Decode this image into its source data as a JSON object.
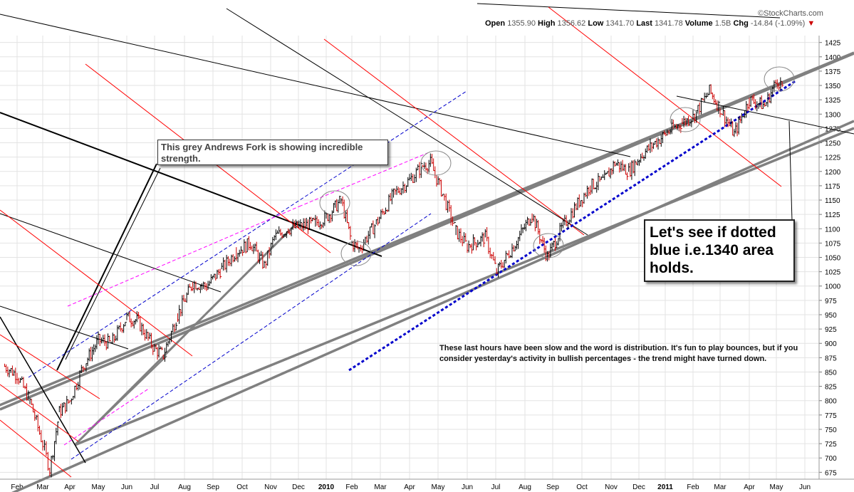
{
  "header": {
    "brand": "©StockCharts.com",
    "open_label": "Open",
    "open": "1355.90",
    "high_label": "High",
    "high": "1356.62",
    "low_label": "Low",
    "low": "1341.70",
    "last_label": "Last",
    "last": "1341.78",
    "volume_label": "Volume",
    "volume": "1.5B",
    "chg_label": "Chg",
    "chg": "-14.84 (-1.09%)",
    "chg_arrow": "▼"
  },
  "annotations": {
    "fork_callout": "This grey Andrews Fork is showing incredible strength.",
    "big_callout": "Let's see if dotted blue i.e.1340 area holds.",
    "note": "These last hours have been slow and the word is distribution. It's fun to play bounces, but if you consider yesterday's activity in bullish percentages - the trend might have turned down."
  },
  "colors": {
    "up_bar": "#000000",
    "down_bar": "#cc0000",
    "grey_fork": "#808080",
    "red_line": "#ff0000",
    "blue_line": "#0000cc",
    "magenta_line": "#ff00ff"
  },
  "chart_data": {
    "type": "line",
    "style": "ohlc",
    "yaxis_position": "right",
    "ylim": [
      663,
      1437
    ],
    "y_ticks": [
      675,
      700,
      725,
      750,
      775,
      800,
      825,
      850,
      875,
      900,
      925,
      950,
      975,
      1000,
      1025,
      1050,
      1075,
      1100,
      1125,
      1150,
      1175,
      1200,
      1225,
      1250,
      1275,
      1300,
      1325,
      1350,
      1375,
      1400,
      1425
    ],
    "x_tick_labels": [
      "Feb",
      "Mar",
      "Apr",
      "May",
      "Jun",
      "Jul",
      "Aug",
      "Sep",
      "Oct",
      "Nov",
      "Dec",
      "2010",
      "Feb",
      "Mar",
      "Apr",
      "May",
      "Jun",
      "Jul",
      "Aug",
      "Sep",
      "Oct",
      "Nov",
      "Dec",
      "2011",
      "Feb",
      "Mar",
      "Apr",
      "May",
      "Jun"
    ],
    "bold_x_ticks": [
      "2010",
      "2011"
    ],
    "grid": true,
    "series": [
      {
        "x": [
          "2009-01-15",
          "2009-02-01",
          "2009-02-15",
          "2009-03-01",
          "2009-03-09",
          "2009-03-20",
          "2009-04-01",
          "2009-04-15",
          "2009-05-01",
          "2009-05-15",
          "2009-06-01",
          "2009-06-12",
          "2009-07-01",
          "2009-07-10",
          "2009-07-25",
          "2009-08-10",
          "2009-08-25",
          "2009-09-10",
          "2009-09-25",
          "2009-10-10",
          "2009-10-25",
          "2009-11-05",
          "2009-11-20",
          "2009-12-05",
          "2009-12-20",
          "2010-01-01",
          "2010-01-19",
          "2010-02-01",
          "2010-02-08",
          "2010-02-25",
          "2010-03-15",
          "2010-04-01",
          "2010-04-15",
          "2010-04-23",
          "2010-05-06",
          "2010-05-20",
          "2010-06-01",
          "2010-06-20",
          "2010-07-02",
          "2010-07-20",
          "2010-08-09",
          "2010-08-26",
          "2010-09-10",
          "2010-09-25",
          "2010-10-10",
          "2010-10-25",
          "2010-11-05",
          "2010-11-20",
          "2010-12-05",
          "2010-12-20",
          "2011-01-05",
          "2011-01-20",
          "2011-02-01",
          "2011-02-18",
          "2011-03-01",
          "2011-03-16",
          "2011-04-01",
          "2011-04-18",
          "2011-05-02",
          "2011-05-09"
        ],
        "values": [
          860,
          845,
          800,
          725,
          680,
          780,
          800,
          860,
          905,
          900,
          945,
          940,
          890,
          880,
          950,
          1005,
          1000,
          1030,
          1060,
          1075,
          1035,
          1085,
          1100,
          1105,
          1110,
          1120,
          1150,
          1075,
          1065,
          1110,
          1160,
          1185,
          1210,
          1215,
          1160,
          1095,
          1070,
          1085,
          1025,
          1070,
          1125,
          1050,
          1100,
          1140,
          1175,
          1185,
          1215,
          1200,
          1230,
          1250,
          1270,
          1285,
          1295,
          1340,
          1310,
          1265,
          1325,
          1315,
          1360,
          1345
        ]
      }
    ]
  }
}
